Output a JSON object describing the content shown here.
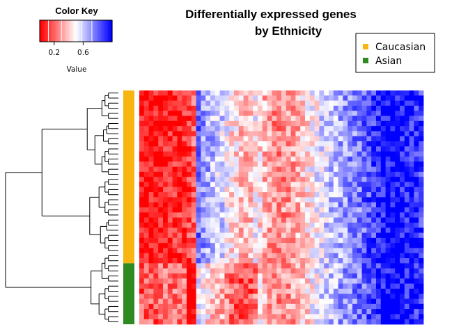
{
  "chart_data": {
    "type": "heatmap",
    "title_line1": "Differentially expressed genes",
    "title_line2": "by Ethnicity",
    "color_key": {
      "title": "Color Key",
      "xlabel": "Value",
      "ticks": [
        "0.2",
        "0.6"
      ],
      "tick_values": [
        0.2,
        0.6
      ],
      "range": [
        0,
        1
      ],
      "colors": {
        "low": "#ff0000",
        "mid": "#ffffff",
        "high": "#0000ff"
      }
    },
    "legend": {
      "position": "top-right",
      "entries": [
        {
          "label": "Caucasian",
          "color": "#f9b50f"
        },
        {
          "label": "Asian",
          "color": "#2e8b22"
        }
      ]
    },
    "groups": [
      {
        "name": "Caucasian",
        "color": "#f9b50f",
        "rows": 34
      },
      {
        "name": "Asian",
        "color": "#2e8b22",
        "rows": 12
      }
    ],
    "n_rows": 46,
    "n_cols": 60,
    "column_profile": [
      0.02,
      0.02,
      0.03,
      0.03,
      0.04,
      0.05,
      0.06,
      0.07,
      0.08,
      0.09,
      0.12,
      0.2,
      0.78,
      0.72,
      0.68,
      0.64,
      0.6,
      0.58,
      0.52,
      0.45,
      0.42,
      0.38,
      0.36,
      0.4,
      0.48,
      0.44,
      0.36,
      0.3,
      0.28,
      0.26,
      0.28,
      0.3,
      0.32,
      0.36,
      0.4,
      0.44,
      0.48,
      0.52,
      0.56,
      0.58,
      0.62,
      0.64,
      0.68,
      0.7,
      0.72,
      0.74,
      0.76,
      0.8,
      0.84,
      0.88,
      0.92,
      0.96,
      0.98,
      0.99,
      0.98,
      0.96,
      0.94,
      0.93,
      0.92,
      0.9
    ],
    "group_effect": {
      "Asian": {
        "col_range": [
          10,
          24
        ],
        "delta": -0.25
      }
    }
  }
}
